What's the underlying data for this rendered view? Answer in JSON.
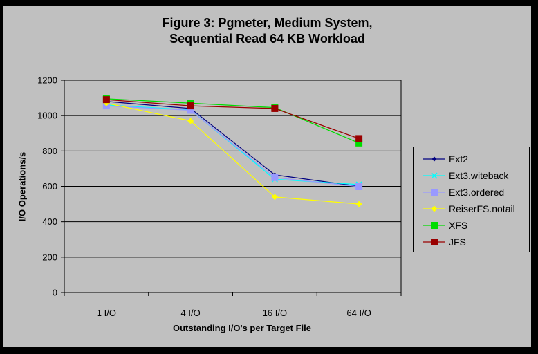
{
  "title": {
    "line1": "Figure 3: Pgmeter, Medium System,",
    "line2": "Sequential Read 64 KB Workload"
  },
  "colors": {
    "background": "#C0C0C0",
    "frame": "#000000",
    "axis": "#000000",
    "gridline": "#000000",
    "text": "#000000"
  },
  "chart_data": {
    "type": "line",
    "title": "Figure 3: Pgmeter, Medium System, Sequential Read 64 KB Workload",
    "categories": [
      "1 I/O",
      "4 I/O",
      "16 I/O",
      "64 I/O"
    ],
    "series": [
      {
        "name": "Ext2",
        "color": "#000080",
        "marker": "diamond",
        "marker_size": 7,
        "values": [
          1080,
          1040,
          665,
          600
        ]
      },
      {
        "name": "Ext3.witeback",
        "color": "#00FFFF",
        "marker": "x",
        "marker_size": 8,
        "values": [
          1060,
          1032,
          640,
          610
        ]
      },
      {
        "name": "Ext3.ordered",
        "color": "#9999FF",
        "marker": "square",
        "marker_size": 10,
        "values": [
          1055,
          1030,
          650,
          598
        ]
      },
      {
        "name": "ReiserFS.notail",
        "color": "#FFFF00",
        "marker": "diamond",
        "marker_size": 9,
        "values": [
          1070,
          970,
          540,
          500
        ]
      },
      {
        "name": "XFS",
        "color": "#00DD00",
        "marker": "square",
        "marker_size": 10,
        "values": [
          1095,
          1070,
          1045,
          845
        ]
      },
      {
        "name": "JFS",
        "color": "#990000",
        "marker": "square",
        "marker_size": 10,
        "values": [
          1090,
          1055,
          1040,
          870
        ]
      }
    ],
    "xlabel": "Outstanding I/O's per Target File",
    "ylabel": "I/O Operations/s",
    "ylim": [
      0,
      1200
    ],
    "yticks": [
      0,
      200,
      400,
      600,
      800,
      1000,
      1200
    ],
    "grid": "horizontal",
    "legend_position": "right"
  }
}
